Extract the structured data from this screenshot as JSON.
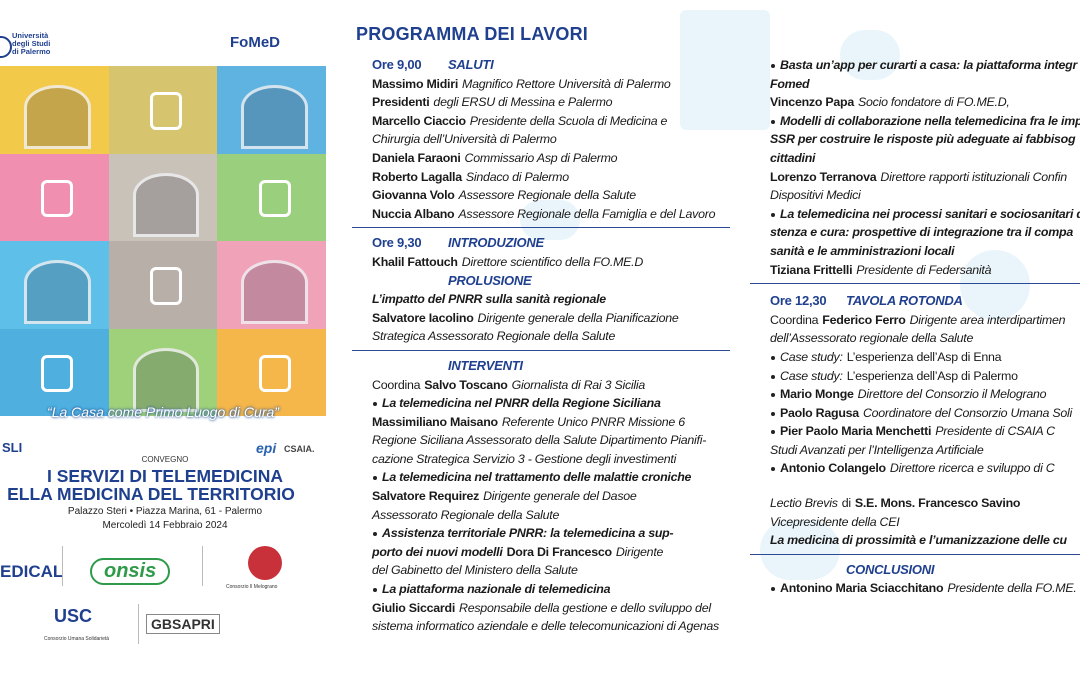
{
  "poster": {
    "university": [
      "Università",
      "degli Studi",
      "di Palermo"
    ],
    "fomed": "FoMeD",
    "quote": "“La Casa come Primo Luogo di Cura”",
    "convegno": "CONVEGNO",
    "title": [
      "I SERVIZI DI TELEMEDICINA",
      "ELLA MEDICINA DEL TERRITORIO"
    ],
    "venue": "Palazzo Steri • Piazza Marina, 61 - Palermo",
    "date": "Mercoledì 14 Febbraio 2024",
    "logos": {
      "sli": "SLI",
      "epi": "epi",
      "csaia": "CSAIA.",
      "edical": "EDICAL",
      "consis": "onsis",
      "melograno": "Consorzio Il Melograno",
      "usc": "USC",
      "umana": "Consorzio Umana Solidarietà",
      "gbsapri": "GBSAPRI"
    }
  },
  "program": {
    "title": "PROGRAMMA DEI LAVORI",
    "columns": [
      {
        "sections": [
          {
            "blocks": [
              [
                {
                  "time": "Ore 9,00",
                  "heading": "SALUTI"
                },
                {
                  "text": [
                    {
                      "bold": "Massimo Midiri"
                    },
                    {
                      "italic": "Magnifico Rettore Università di Palermo"
                    }
                  ]
                },
                {
                  "text": [
                    {
                      "bold": "Presidenti"
                    },
                    {
                      "italic": "degli ERSU di Messina e Palermo"
                    }
                  ]
                },
                {
                  "text": [
                    {
                      "bold": "Marcello Ciaccio"
                    },
                    {
                      "italic": "Presidente della Scuola di Medicina e"
                    }
                  ]
                },
                {
                  "text": [
                    {
                      "italic": "Chirurgia dell’Università di Palermo"
                    }
                  ]
                },
                {
                  "text": [
                    {
                      "bold": "Daniela Faraoni"
                    },
                    {
                      "italic": "Commissario Asp di Palermo"
                    }
                  ]
                },
                {
                  "text": [
                    {
                      "bold": "Roberto Lagalla"
                    },
                    {
                      "italic": "Sindaco di Palermo"
                    }
                  ]
                },
                {
                  "text": [
                    {
                      "bold": "Giovanna Volo"
                    },
                    {
                      "italic": "Assessore Regionale della Salute"
                    }
                  ]
                },
                {
                  "text": [
                    {
                      "bold": "Nuccia Albano"
                    },
                    {
                      "italic": "Assessore Regionale della Famiglia e del Lavoro"
                    }
                  ]
                }
              ]
            ]
          },
          {
            "blocks": [
              [
                {
                  "time": "Ore 9,30",
                  "heading": "INTRODUZIONE"
                },
                {
                  "text": [
                    {
                      "bold": "Khalil Fattouch"
                    },
                    {
                      "italic": "Direttore scientifico della FO.ME.D"
                    }
                  ]
                },
                {
                  "heading": "PROLUSIONE"
                },
                {
                  "text": [
                    {
                      "bolditalic": "L’impatto del PNRR sulla sanità regionale"
                    }
                  ]
                },
                {
                  "text": [
                    {
                      "bold": "Salvatore Iacolino"
                    },
                    {
                      "italic": "Dirigente generale della Pianificazione"
                    }
                  ]
                },
                {
                  "text": [
                    {
                      "italic": "Strategica Assessorato Regionale della Salute"
                    }
                  ]
                }
              ]
            ]
          },
          {
            "blocks": [
              [
                {
                  "heading": "INTERVENTI"
                },
                {
                  "text": [
                    {
                      "plain": "Coordina"
                    },
                    {
                      "bold": "Salvo Toscano"
                    },
                    {
                      "italic": "Giornalista di Rai 3 Sicilia"
                    }
                  ]
                },
                {
                  "bullet": [
                    {
                      "bolditalic": "La telemedicina nel PNRR della Regione Siciliana"
                    }
                  ]
                },
                {
                  "text": [
                    {
                      "bold": "Massimiliano Maisano"
                    },
                    {
                      "italic": "Referente Unico PNRR Missione 6"
                    }
                  ]
                },
                {
                  "text": [
                    {
                      "italic": "Regione Siciliana Assessorato della Salute Dipartimento Pianifi-"
                    }
                  ]
                },
                {
                  "text": [
                    {
                      "italic": "cazione Strategica Servizio 3 - Gestione degli investimenti"
                    }
                  ]
                },
                {
                  "bullet": [
                    {
                      "bolditalic": "La telemedicina nel trattamento delle malattie croniche"
                    }
                  ]
                },
                {
                  "text": [
                    {
                      "bold": "Salvatore Requirez"
                    },
                    {
                      "italic": "Dirigente generale del Dasoe"
                    }
                  ]
                },
                {
                  "text": [
                    {
                      "italic": "Assessorato Regionale della Salute"
                    }
                  ]
                },
                {
                  "bullet": [
                    {
                      "bolditalic": "Assistenza territoriale PNRR: la telemedicina a sup-"
                    }
                  ]
                },
                {
                  "text": [
                    {
                      "bolditalic": "porto dei nuovi modelli"
                    },
                    {
                      "bold": "Dora Di Francesco"
                    },
                    {
                      "italic": "Dirigente"
                    }
                  ]
                },
                {
                  "text": [
                    {
                      "italic": "del Gabinetto del Ministero della Salute"
                    }
                  ]
                },
                {
                  "bullet": [
                    {
                      "bolditalic": "La piattaforma nazionale di telemedicina"
                    }
                  ]
                },
                {
                  "text": [
                    {
                      "bold": "Giulio Siccardi"
                    },
                    {
                      "italic": "Responsabile della gestione e dello sviluppo del"
                    }
                  ]
                },
                {
                  "text": [
                    {
                      "italic": "sistema informatico aziendale e delle telecomunicazioni di Agenas"
                    }
                  ]
                }
              ]
            ]
          }
        ]
      },
      {
        "sections": [
          {
            "blocks": [
              [
                {
                  "bullet": [
                    {
                      "bolditalic": "Basta un’app per curarti a casa: la piattaforma integr"
                    }
                  ]
                },
                {
                  "text": [
                    {
                      "bolditalic": "Fomed"
                    }
                  ]
                },
                {
                  "text": [
                    {
                      "bold": "Vincenzo Papa"
                    },
                    {
                      "italic": "Socio fondatore di FO.ME.D,"
                    }
                  ]
                },
                {
                  "bullet": [
                    {
                      "bolditalic": "Modelli di collaborazione nella telemedicina fra le impr"
                    }
                  ]
                },
                {
                  "text": [
                    {
                      "bolditalic": "SSR per costruire le risposte più adeguate ai fabbisog"
                    }
                  ]
                },
                {
                  "text": [
                    {
                      "bolditalic": "cittadini"
                    }
                  ]
                },
                {
                  "text": [
                    {
                      "bold": "Lorenzo Terranova"
                    },
                    {
                      "italic": "Direttore rapporti istituzionali Confin"
                    }
                  ]
                },
                {
                  "text": [
                    {
                      "italic": "Dispositivi Medici"
                    }
                  ]
                },
                {
                  "bullet": [
                    {
                      "bolditalic": "La telemedicina nei processi sanitari e sociosanitari d"
                    }
                  ]
                },
                {
                  "text": [
                    {
                      "bolditalic": "stenza e cura: prospettive di integrazione tra il compa"
                    }
                  ]
                },
                {
                  "text": [
                    {
                      "bolditalic": "sanità e le amministrazioni locali"
                    }
                  ]
                },
                {
                  "text": [
                    {
                      "bold": "Tiziana Frittelli"
                    },
                    {
                      "italic": "Presidente di Federsanità"
                    }
                  ]
                }
              ]
            ]
          },
          {
            "blocks": [
              [
                {
                  "time": "Ore 12,30",
                  "heading": "TAVOLA ROTONDA"
                },
                {
                  "text": [
                    {
                      "plain": "Coordina"
                    },
                    {
                      "bold": "Federico Ferro"
                    },
                    {
                      "italic": "Dirigente area interdipartimen"
                    }
                  ]
                },
                {
                  "text": [
                    {
                      "italic": "dell’Assessorato regionale della Salute"
                    }
                  ]
                },
                {
                  "bullet": [
                    {
                      "italic": "Case study:"
                    },
                    {
                      "plain": "L’esperienza dell’Asp di Enna"
                    }
                  ]
                },
                {
                  "bullet": [
                    {
                      "italic": "Case study:"
                    },
                    {
                      "plain": "L’esperienza dell’Asp di Palermo"
                    }
                  ]
                },
                {
                  "bullet": [
                    {
                      "bold": "Mario Monge"
                    },
                    {
                      "italic": "Direttore del Consorzio il Melograno"
                    }
                  ]
                },
                {
                  "bullet": [
                    {
                      "bold": "Paolo Ragusa"
                    },
                    {
                      "italic": "Coordinatore del Consorzio Umana Soli"
                    }
                  ]
                },
                {
                  "bullet": [
                    {
                      "bold": "Pier Paolo Maria Menchetti"
                    },
                    {
                      "italic": "Presidente di CSAIA C"
                    }
                  ]
                },
                {
                  "text": [
                    {
                      "italic": "Studi Avanzati per l’Intelligenza Artificiale"
                    }
                  ]
                },
                {
                  "bullet": [
                    {
                      "bold": "Antonio Colangelo"
                    },
                    {
                      "italic": "Direttore ricerca e sviluppo di C"
                    }
                  ]
                }
              ],
              [
                {
                  "text": [
                    {
                      "italic": "Lectio Brevis"
                    },
                    {
                      "plain": "di"
                    },
                    {
                      "bold": "S.E. Mons. Francesco Savino"
                    }
                  ]
                },
                {
                  "text": [
                    {
                      "italic": "Vicepresidente della CEI"
                    }
                  ]
                },
                {
                  "text": [
                    {
                      "bolditalic": "La medicina di prossimità e l’umanizzazione delle cu"
                    }
                  ]
                }
              ]
            ]
          },
          {
            "blocks": [
              [
                {
                  "heading": "CONCLUSIONI"
                },
                {
                  "bullet": [
                    {
                      "bold": "Antonino Maria Sciacchitano"
                    },
                    {
                      "italic": "Presidente della FO.ME."
                    }
                  ]
                }
              ]
            ]
          }
        ]
      }
    ]
  }
}
